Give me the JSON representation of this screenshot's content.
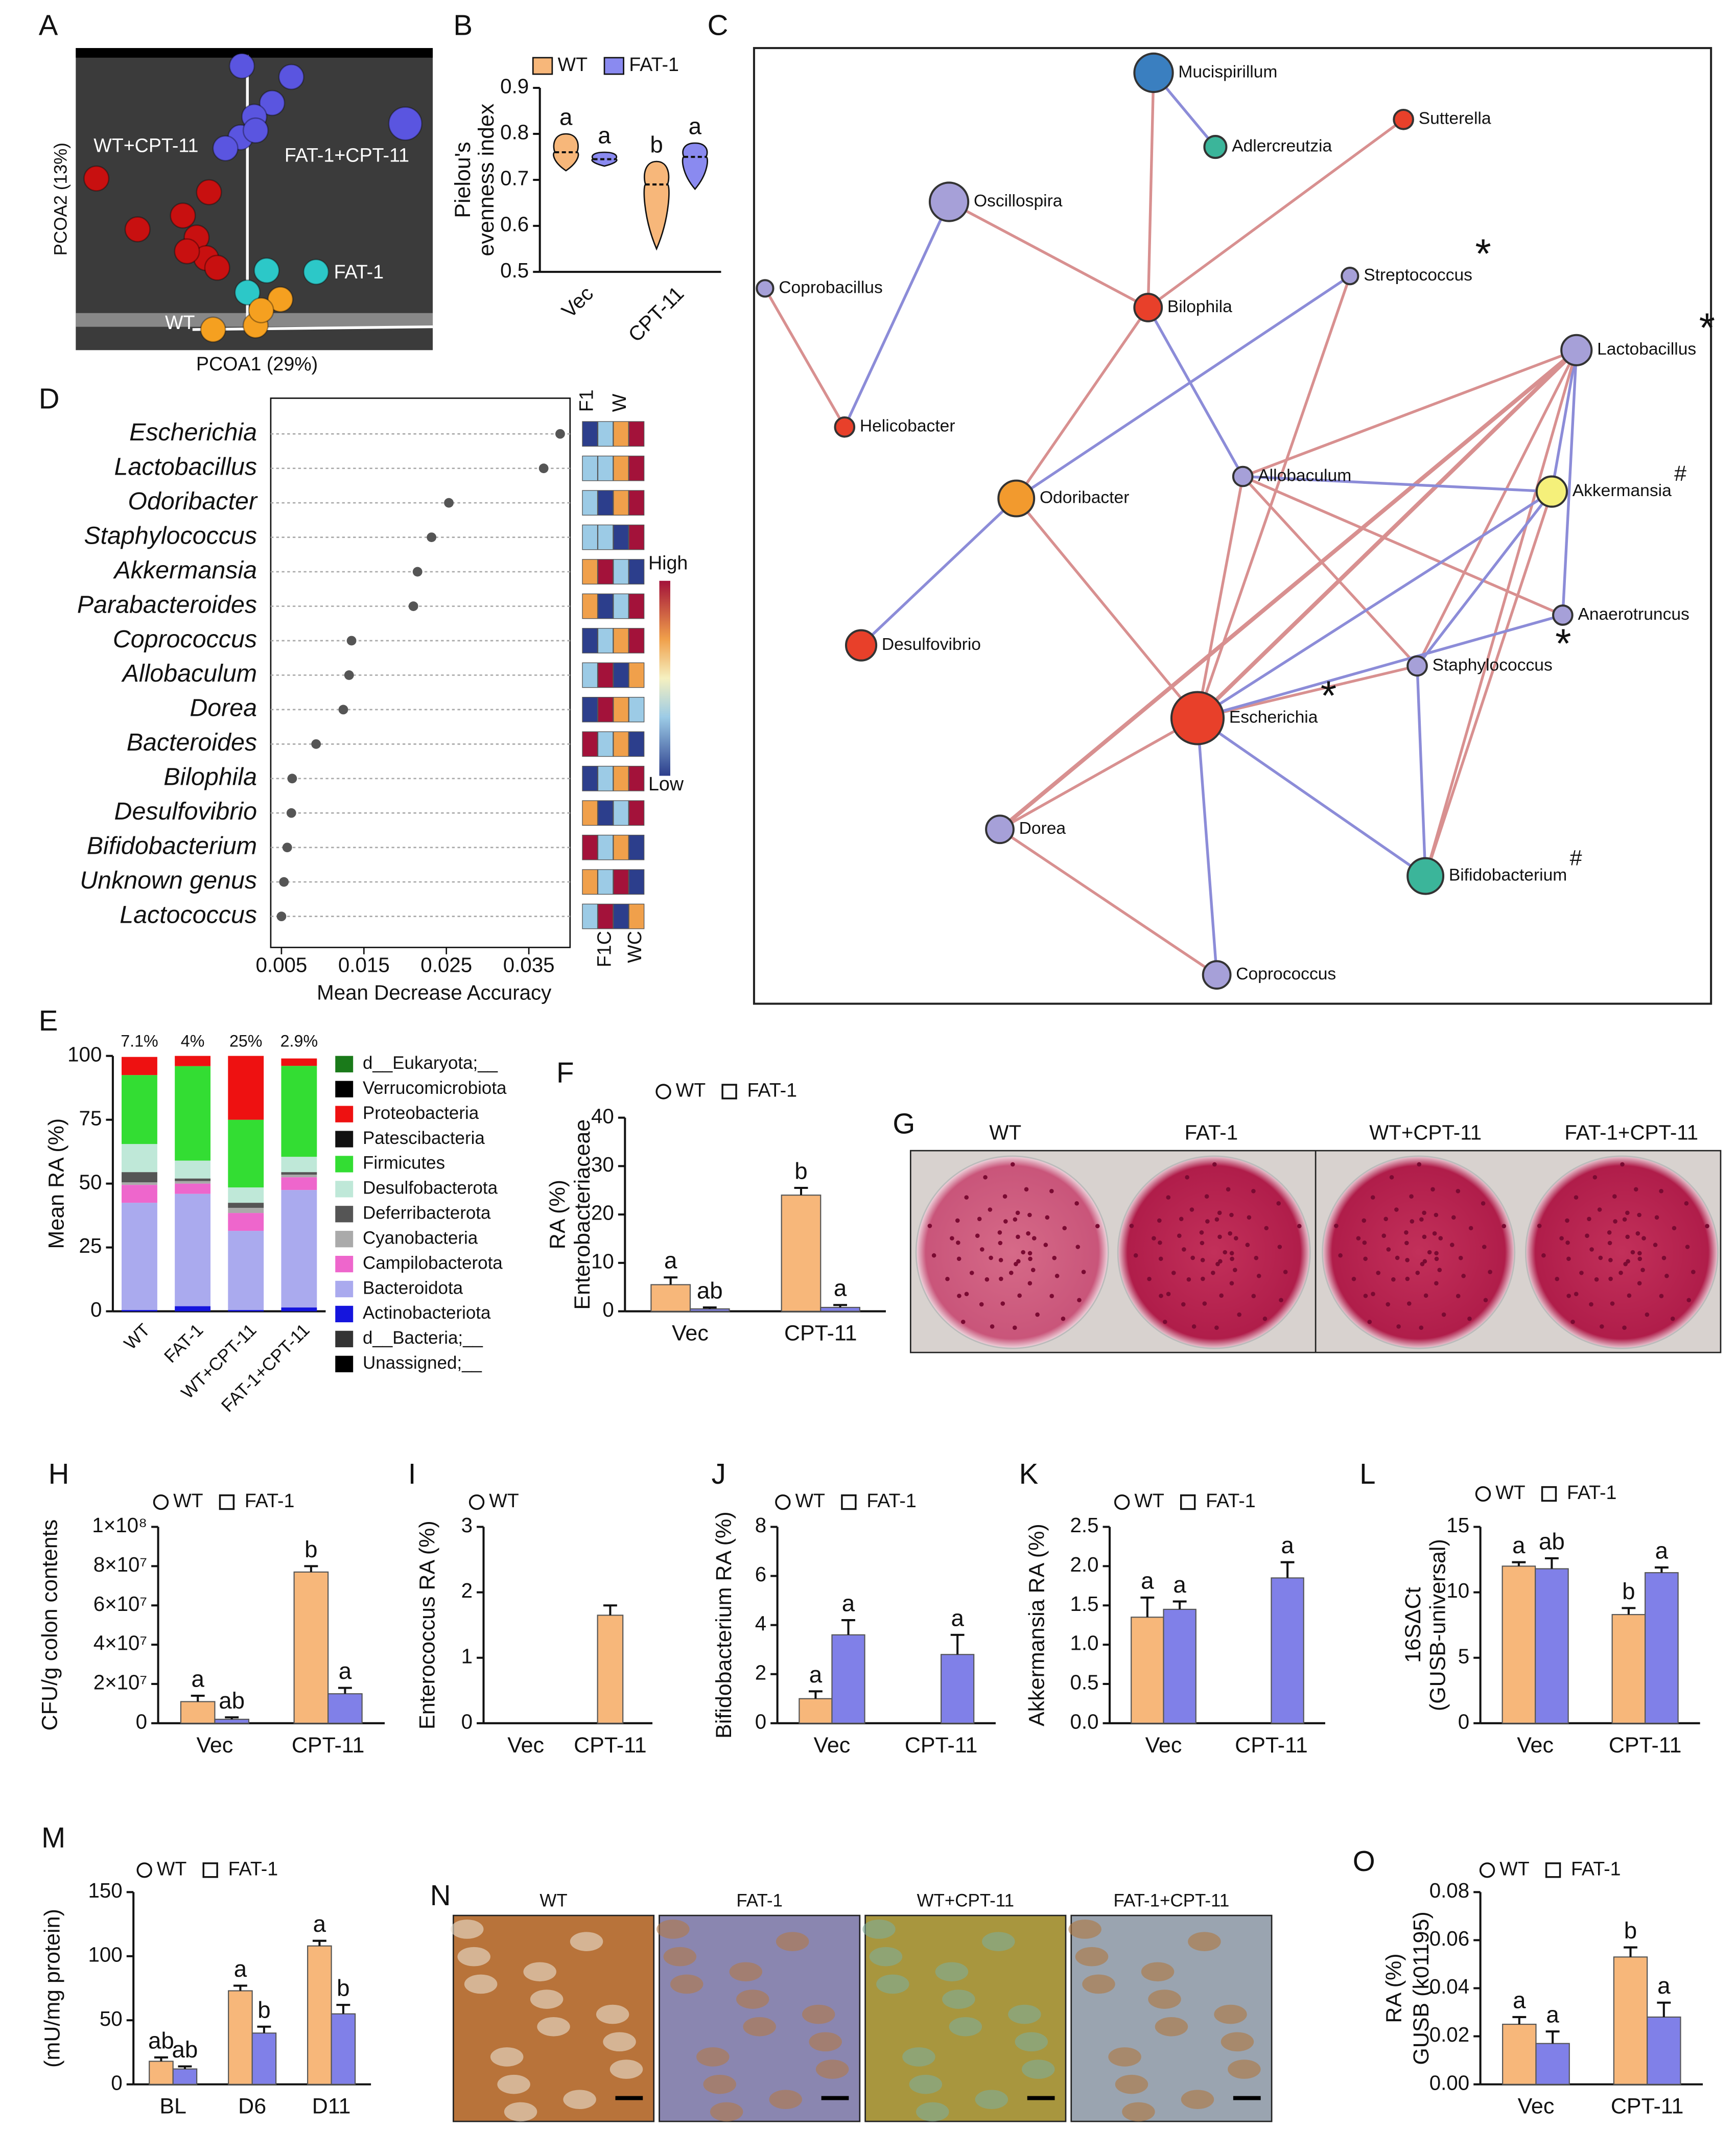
{
  "pcoa": {
    "panel": "A",
    "xlabel": "PCOA1 (29%)",
    "ylabel": "PCOA2 (13%)",
    "groups": [
      {
        "name": "WT+CPT-11",
        "color": "#c81010"
      },
      {
        "name": "FAT-1+CPT-11",
        "color": "#5a55e0"
      },
      {
        "name": "FAT-1",
        "color": "#2cc8c8"
      },
      {
        "name": "WT",
        "color": "#f5a020"
      }
    ]
  },
  "network": {
    "panel": "C",
    "nodes": [
      {
        "label": "Mucispirillum",
        "color": "#3a7fc0"
      },
      {
        "label": "Adlercreutzia",
        "color": "#3bb59a"
      },
      {
        "label": "Sutterella",
        "color": "#e8402a"
      },
      {
        "label": "Oscillospira",
        "color": "#a6a0d8"
      },
      {
        "label": "Coprobacillus",
        "color": "#a6a0d8"
      },
      {
        "label": "Bilophila",
        "color": "#e8402a"
      },
      {
        "label": "Streptococcus",
        "color": "#a6a0d8",
        "marker": "*"
      },
      {
        "label": "Lactobacillus",
        "color": "#a6a0d8",
        "marker": "*"
      },
      {
        "label": "Helicobacter",
        "color": "#e8402a"
      },
      {
        "label": "Odoribacter",
        "color": "#f29a2e"
      },
      {
        "label": "Allobaculum",
        "color": "#a6a0d8"
      },
      {
        "label": "Akkermansia",
        "color": "#f5f07a",
        "marker": "#"
      },
      {
        "label": "Anaerotruncus",
        "color": "#a6a0d8"
      },
      {
        "label": "Desulfovibrio",
        "color": "#e8402a"
      },
      {
        "label": "Staphylococcus",
        "color": "#a6a0d8",
        "marker": "*"
      },
      {
        "label": "Escherichia",
        "color": "#e8402a",
        "marker": "*"
      },
      {
        "label": "Dorea",
        "color": "#a6a0d8"
      },
      {
        "label": "Bifidobacterium",
        "color": "#3bb59a",
        "marker": "#"
      },
      {
        "label": "Coprococcus",
        "color": "#a6a0d8"
      }
    ]
  },
  "plates": {
    "panel": "G",
    "labels": [
      "WT",
      "FAT-1",
      "WT+CPT-11",
      "FAT-1+CPT-11"
    ]
  },
  "histology": {
    "panel": "N",
    "labels": [
      "WT",
      "FAT-1",
      "WT+CPT-11",
      "FAT-1+CPT-11"
    ]
  },
  "chart_data": [
    {
      "panel": "B",
      "type": "violin",
      "ylabel": [
        "Pielou's",
        "evenness index"
      ],
      "categories": [
        "Vec",
        "CPT-11"
      ],
      "ylim": [
        0.5,
        0.9
      ],
      "yticks": [
        0.5,
        0.6,
        0.7,
        0.8,
        0.9
      ],
      "series": [
        {
          "name": "WT",
          "color": "#f7b77a",
          "min": [
            0.72,
            0.55
          ],
          "median": [
            0.76,
            0.69
          ],
          "max": [
            0.8,
            0.74
          ],
          "letters": [
            "a",
            "b"
          ]
        },
        {
          "name": "FAT-1",
          "color": "#8a8af0",
          "min": [
            0.73,
            0.68
          ],
          "median": [
            0.745,
            0.75
          ],
          "max": [
            0.76,
            0.78
          ],
          "letters": [
            "a",
            "a"
          ]
        }
      ]
    },
    {
      "panel": "D",
      "type": "dot",
      "xlabel": "Mean Decrease Accuracy",
      "categories": [
        "Escherichia",
        "Lactobacillus",
        "Odoribacter",
        "Staphylococcus",
        "Akkermansia",
        "Parabacteroides",
        "Coprococcus",
        "Allobaculum",
        "Dorea",
        "Bacteroides",
        "Bilophila",
        "Desulfovibrio",
        "Bifidobacterium",
        "Unknown genus",
        "Lactococcus"
      ],
      "values": [
        0.0388,
        0.0368,
        0.0253,
        0.0232,
        0.0215,
        0.021,
        0.0135,
        0.0132,
        0.0125,
        0.0092,
        0.0063,
        0.0062,
        0.0057,
        0.0053,
        0.005
      ],
      "xlim": [
        0.0037,
        0.04
      ],
      "xticks": [
        0.005,
        0.015,
        0.025,
        0.035
      ],
      "heatmap": {
        "top_labels": [
          "F1",
          "W"
        ],
        "bottom_labels": [
          "F1C",
          "WC"
        ],
        "scale_labels": [
          "High",
          "Low"
        ],
        "colors": [
          [
            "#2c3e8c",
            "#9ccbe6",
            "#f0a04b",
            "#a3123a"
          ],
          [
            "#9ccbe6",
            "#9ccbe6",
            "#f0a04b",
            "#a3123a"
          ],
          [
            "#9ccbe6",
            "#2c3e8c",
            "#f0a04b",
            "#a3123a"
          ],
          [
            "#9ccbe6",
            "#9ccbe6",
            "#2c3e8c",
            "#a3123a"
          ],
          [
            "#f0a04b",
            "#a3123a",
            "#9ccbe6",
            "#2c3e8c"
          ],
          [
            "#f0a04b",
            "#2c3e8c",
            "#9ccbe6",
            "#a3123a"
          ],
          [
            "#2c3e8c",
            "#9ccbe6",
            "#f0a04b",
            "#a3123a"
          ],
          [
            "#9ccbe6",
            "#a3123a",
            "#2c3e8c",
            "#f0a04b"
          ],
          [
            "#2c3e8c",
            "#a3123a",
            "#f0a04b",
            "#9ccbe6"
          ],
          [
            "#a3123a",
            "#9ccbe6",
            "#f0a04b",
            "#2c3e8c"
          ],
          [
            "#2c3e8c",
            "#9ccbe6",
            "#f0a04b",
            "#a3123a"
          ],
          [
            "#f0a04b",
            "#2c3e8c",
            "#9ccbe6",
            "#a3123a"
          ],
          [
            "#a3123a",
            "#9ccbe6",
            "#f0a04b",
            "#2c3e8c"
          ],
          [
            "#f0a04b",
            "#9ccbe6",
            "#a3123a",
            "#2c3e8c"
          ],
          [
            "#9ccbe6",
            "#a3123a",
            "#2c3e8c",
            "#f0a04b"
          ]
        ]
      }
    },
    {
      "panel": "E",
      "type": "stacked",
      "ylabel": "Mean RA (%)",
      "categories": [
        "WT",
        "FAT-1",
        "WT+CPT-11",
        "FAT-1+CPT-11"
      ],
      "ylim": [
        0,
        100
      ],
      "yticks": [
        0,
        25,
        50,
        75,
        100
      ],
      "series": [
        {
          "name": "Unassigned;__",
          "color": "#000000",
          "values": [
            0,
            0,
            0,
            0
          ]
        },
        {
          "name": "d__Bacteria;__",
          "color": "#333333",
          "values": [
            0,
            0,
            0,
            0
          ]
        },
        {
          "name": "Actinobacteriota",
          "color": "#1515dd",
          "values": [
            0.5,
            2,
            0.5,
            1.5
          ]
        },
        {
          "name": "Bacteroidota",
          "color": "#aaaaee",
          "values": [
            42,
            44,
            31,
            46
          ]
        },
        {
          "name": "Campilobacterota",
          "color": "#ee66cc",
          "values": [
            7,
            4,
            7,
            5
          ]
        },
        {
          "name": "Cyanobacteria",
          "color": "#aaaaaa",
          "values": [
            1,
            1,
            2,
            1
          ]
        },
        {
          "name": "Deferribacterota",
          "color": "#555555",
          "values": [
            4,
            1,
            2,
            1
          ]
        },
        {
          "name": "Desulfobacterota",
          "color": "#bfe8d8",
          "values": [
            11,
            7,
            6,
            6
          ]
        },
        {
          "name": "Firmicutes",
          "color": "#33dd33",
          "values": [
            27,
            37,
            26.5,
            35.6
          ]
        },
        {
          "name": "Patescibacteria",
          "color": "#111111",
          "values": [
            0,
            0,
            0,
            0
          ]
        },
        {
          "name": "Proteobacteria",
          "color": "#ee1111",
          "values": [
            7.1,
            4,
            25,
            2.9
          ],
          "value_labels": [
            "7.1%",
            "4%",
            "25%",
            "2.9%"
          ]
        },
        {
          "name": "Verrucomicrobiota",
          "color": "#000000",
          "values": [
            0,
            0,
            0,
            0
          ]
        },
        {
          "name": "d__Eukaryota;__",
          "color": "#1a7a1a",
          "values": [
            0,
            0,
            0,
            0
          ]
        }
      ]
    },
    {
      "panel": "F",
      "type": "bar",
      "ylabel": [
        "RA (%)",
        "Enterobacteriaceae"
      ],
      "categories": [
        "Vec",
        "CPT-11"
      ],
      "ylim": [
        0,
        40
      ],
      "yticks": [
        0,
        10,
        20,
        30,
        40
      ],
      "series": [
        {
          "name": "WT",
          "color": "#f7b77a",
          "values": [
            5.5,
            24
          ],
          "errors": [
            1.5,
            1.5
          ],
          "letters": [
            "a",
            "b"
          ]
        },
        {
          "name": "FAT-1",
          "color": "#8080e8",
          "values": [
            0.5,
            0.8
          ],
          "errors": [
            0.3,
            0.5
          ],
          "letters": [
            "ab",
            "a"
          ]
        }
      ]
    },
    {
      "panel": "H",
      "type": "bar",
      "ylabel": "CFU/g colon contents",
      "categories": [
        "Vec",
        "CPT-11"
      ],
      "ylim": [
        0,
        100000000
      ],
      "yticks": [
        0,
        {
          "value": 20000000,
          "label": "2×10⁷"
        },
        {
          "value": 40000000,
          "label": "4×10⁷"
        },
        {
          "value": 60000000,
          "label": "6×10⁷"
        },
        {
          "value": 80000000,
          "label": "8×10⁷"
        },
        {
          "value": 100000000,
          "label": "1×10⁸"
        }
      ],
      "series": [
        {
          "name": "WT",
          "color": "#f7b77a",
          "values": [
            11000000,
            77000000
          ],
          "errors": [
            3000000,
            3000000
          ],
          "letters": [
            "a",
            "b"
          ]
        },
        {
          "name": "FAT-1",
          "color": "#8080e8",
          "values": [
            2000000,
            15000000
          ],
          "errors": [
            1000000,
            3000000
          ],
          "letters": [
            "ab",
            "a"
          ]
        }
      ]
    },
    {
      "panel": "I",
      "type": "bar",
      "ylabel": "Enterococcus RA (%)",
      "categories": [
        "Vec",
        "CPT-11"
      ],
      "ylim": [
        0,
        3
      ],
      "yticks": [
        0,
        1,
        2,
        3
      ],
      "series": [
        {
          "name": "WT",
          "color": "#f7b77a",
          "values": [
            null,
            1.65
          ],
          "errors": [
            null,
            0.15
          ]
        }
      ]
    },
    {
      "panel": "J",
      "type": "bar",
      "ylabel": "Bifidobacterium RA (%)",
      "categories": [
        "Vec",
        "CPT-11"
      ],
      "ylim": [
        0,
        8
      ],
      "yticks": [
        0,
        2,
        4,
        6,
        8
      ],
      "series": [
        {
          "name": "WT",
          "color": "#f7b77a",
          "values": [
            1,
            null
          ],
          "errors": [
            0.3,
            null
          ],
          "letters": [
            "a",
            null
          ]
        },
        {
          "name": "FAT-1",
          "color": "#8080e8",
          "values": [
            3.6,
            2.8
          ],
          "errors": [
            0.6,
            0.8
          ],
          "letters": [
            "a",
            "a"
          ]
        }
      ]
    },
    {
      "panel": "K",
      "type": "bar",
      "ylabel": "Akkermansia RA (%)",
      "categories": [
        "Vec",
        "CPT-11"
      ],
      "ylim": [
        0,
        2.5
      ],
      "yticks": [
        {
          "value": 0,
          "label": "0.0"
        },
        0.5,
        {
          "value": 1,
          "label": "1.0"
        },
        1.5,
        {
          "value": 2,
          "label": "2.0"
        },
        2.5
      ],
      "series": [
        {
          "name": "WT",
          "color": "#f7b77a",
          "values": [
            1.35,
            null
          ],
          "errors": [
            0.25,
            null
          ],
          "letters": [
            "a",
            null
          ]
        },
        {
          "name": "FAT-1",
          "color": "#8080e8",
          "values": [
            1.45,
            1.85
          ],
          "errors": [
            0.1,
            0.2
          ],
          "letters": [
            "a",
            "a"
          ]
        }
      ]
    },
    {
      "panel": "L",
      "type": "bar",
      "ylabel": [
        "16SΔCt",
        "(GUSB-universal)"
      ],
      "categories": [
        "Vec",
        "CPT-11"
      ],
      "ylim": [
        0,
        15
      ],
      "yticks": [
        0,
        5,
        10,
        15
      ],
      "series": [
        {
          "name": "WT",
          "color": "#f7b77a",
          "values": [
            12,
            8.3
          ],
          "errors": [
            0.3,
            0.5
          ],
          "letters": [
            "a",
            "b"
          ]
        },
        {
          "name": "FAT-1",
          "color": "#8080e8",
          "values": [
            11.8,
            11.5
          ],
          "errors": [
            0.8,
            0.4
          ],
          "letters": [
            "ab",
            "a"
          ]
        }
      ]
    },
    {
      "panel": "M",
      "type": "bar",
      "ylabel": "(mU/mg protein)",
      "categories": [
        "BL",
        "D6",
        "D11"
      ],
      "ylim": [
        0,
        150
      ],
      "yticks": [
        0,
        50,
        100,
        150
      ],
      "series": [
        {
          "name": "WT",
          "color": "#f7b77a",
          "values": [
            18,
            73,
            108
          ],
          "errors": [
            3,
            4,
            4
          ],
          "letters": [
            "ab",
            "a",
            "a"
          ]
        },
        {
          "name": "FAT-1",
          "color": "#8080e8",
          "values": [
            12,
            40,
            55
          ],
          "errors": [
            2,
            5,
            7
          ],
          "letters": [
            "ab",
            "b",
            "b"
          ]
        }
      ]
    },
    {
      "panel": "O",
      "type": "bar",
      "ylabel": [
        "RA (%)",
        "GUSB (k01195)"
      ],
      "categories": [
        "Vec",
        "CPT-11"
      ],
      "ylim": [
        0,
        0.08
      ],
      "yticks": [
        {
          "value": 0,
          "label": "0.00"
        },
        {
          "value": 0.02,
          "label": "0.02"
        },
        {
          "value": 0.04,
          "label": "0.04"
        },
        {
          "value": 0.06,
          "label": "0.06"
        },
        {
          "value": 0.08,
          "label": "0.08"
        }
      ],
      "series": [
        {
          "name": "WT",
          "color": "#f7b77a",
          "values": [
            0.025,
            0.053
          ],
          "errors": [
            0.003,
            0.004
          ],
          "letters": [
            "a",
            "b"
          ]
        },
        {
          "name": "FAT-1",
          "color": "#8080e8",
          "values": [
            0.017,
            0.028
          ],
          "errors": [
            0.005,
            0.006
          ],
          "letters": [
            "a",
            "a"
          ]
        }
      ]
    }
  ]
}
